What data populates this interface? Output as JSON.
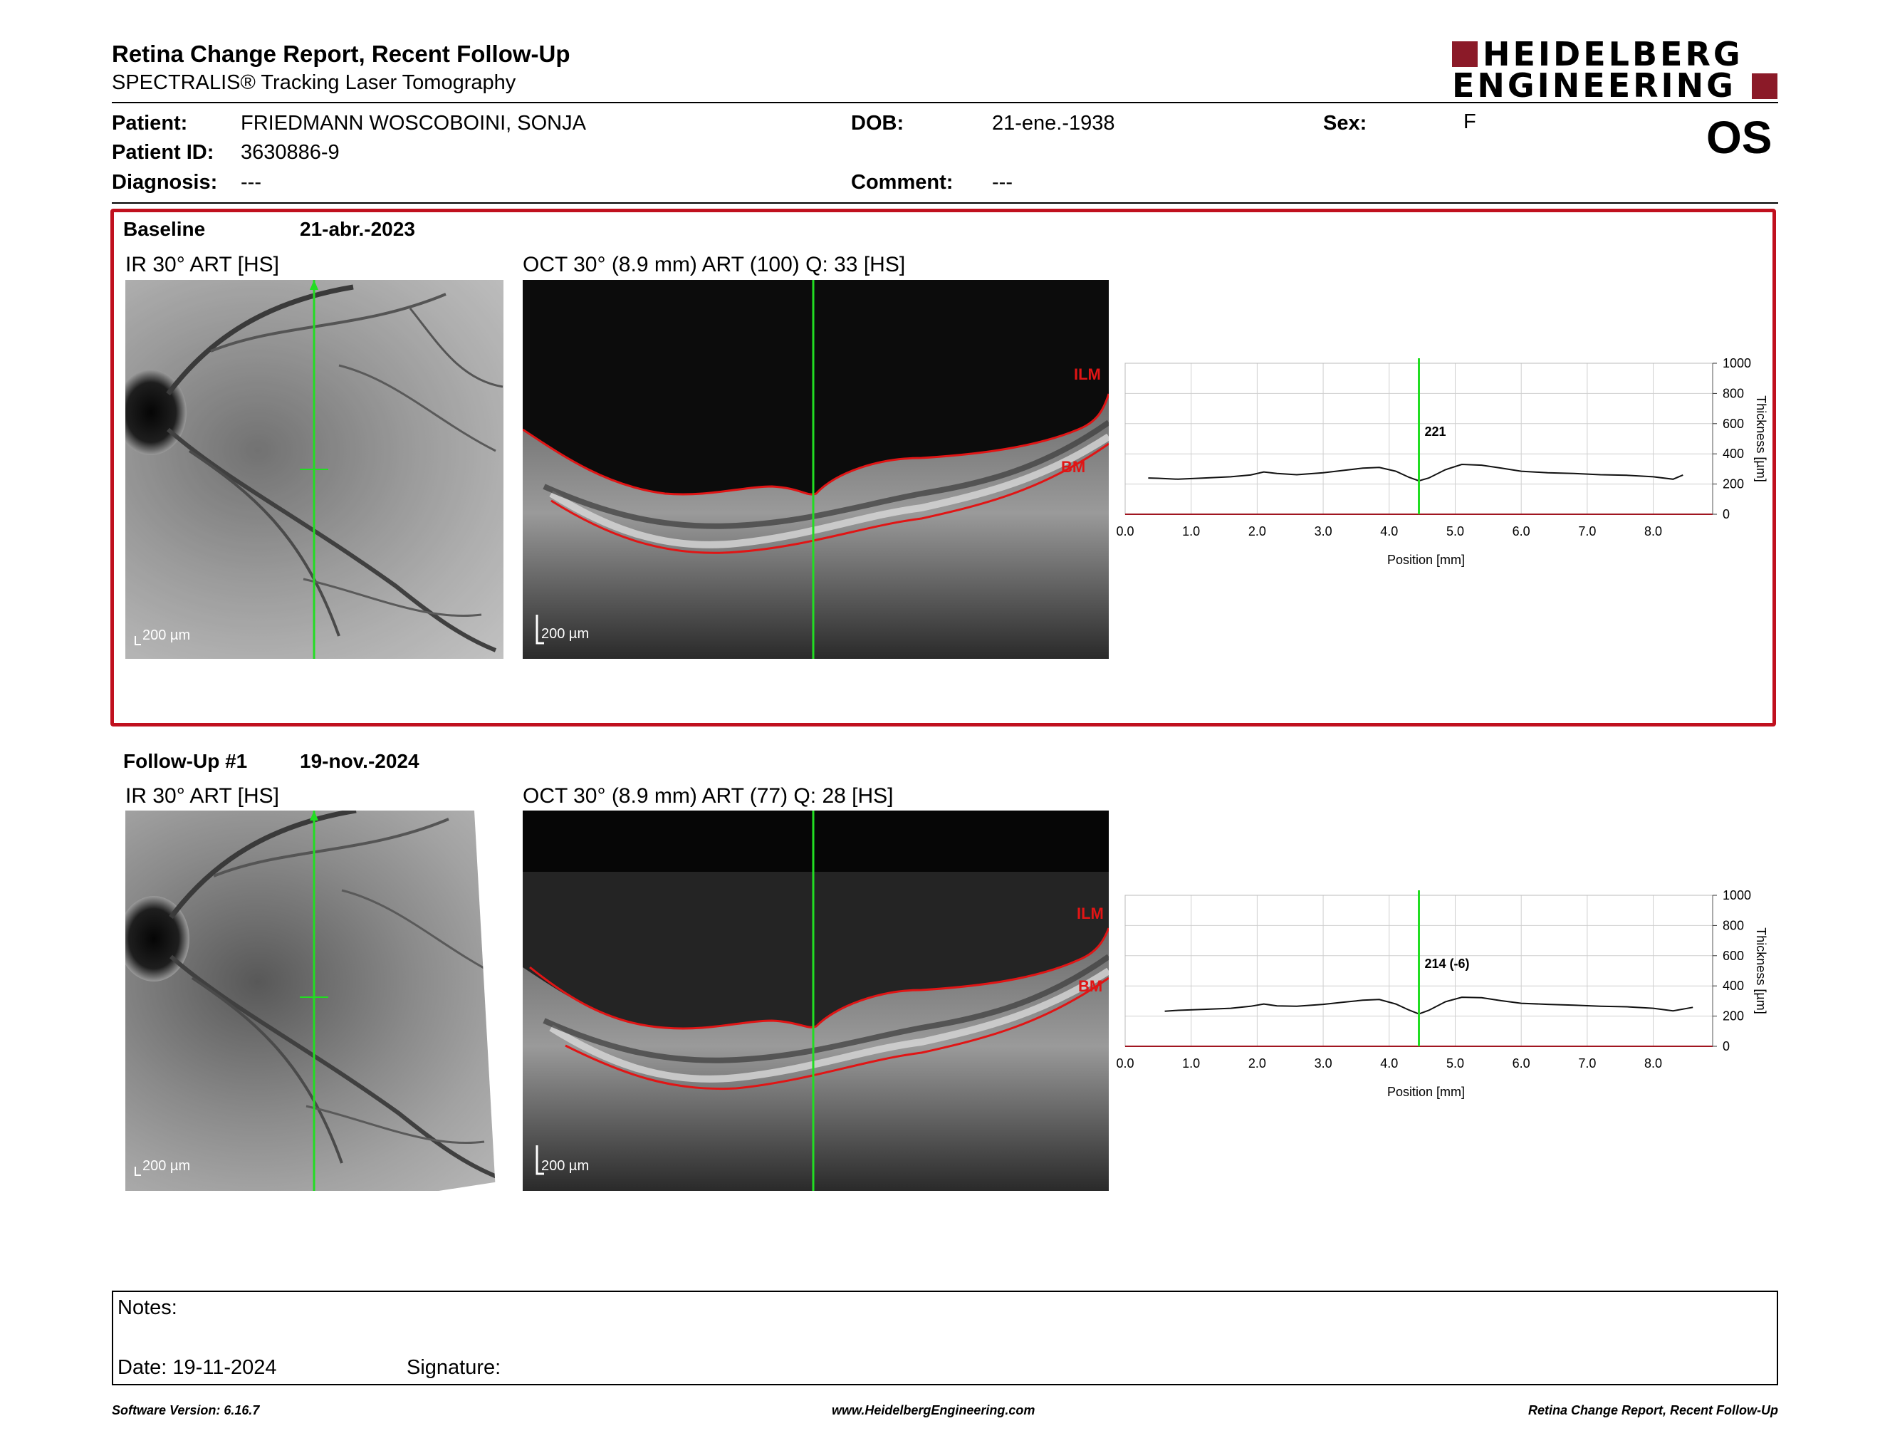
{
  "header": {
    "title": "Retina Change Report, Recent Follow-Up",
    "subtitle": "SPECTRALIS® Tracking Laser Tomography",
    "logo_line1": "HEIDELBERG",
    "logo_line2": "ENGINEERING",
    "brand_color": "#8b1a28"
  },
  "patient": {
    "patient_label": "Patient:",
    "patient_value": "FRIEDMANN WOSCOBOINI,  SONJA",
    "id_label": "Patient ID:",
    "id_value": "3630886-9",
    "diagnosis_label": "Diagnosis:",
    "diagnosis_value": "---",
    "dob_label": "DOB:",
    "dob_value": "21-ene.-1938",
    "comment_label": "Comment:",
    "comment_value": "---",
    "sex_label": "Sex:",
    "sex_value": "F",
    "eye": "OS"
  },
  "exams": [
    {
      "label": "Baseline",
      "date": "21-abr.-2023",
      "ir_title": "IR 30° ART [HS]",
      "oct_title": "OCT 30° (8.9 mm) ART (100) Q: 33 [HS]",
      "ir_scale": "200 µm",
      "oct_scale": "200 µm",
      "ilm_label": "ILM",
      "bm_label": "BM",
      "highlight_color": "#c0101e",
      "chart_data": {
        "type": "line",
        "x": [
          0.35,
          0.5,
          0.8,
          1.2,
          1.6,
          1.9,
          2.1,
          2.3,
          2.6,
          3.0,
          3.3,
          3.6,
          3.85,
          4.1,
          4.3,
          4.45,
          4.6,
          4.85,
          5.1,
          5.4,
          5.7,
          6.0,
          6.4,
          6.8,
          7.2,
          7.6,
          8.0,
          8.3,
          8.45
        ],
        "values": [
          240,
          238,
          232,
          240,
          248,
          260,
          280,
          270,
          262,
          275,
          290,
          305,
          310,
          285,
          245,
          221,
          240,
          295,
          330,
          325,
          305,
          285,
          275,
          270,
          262,
          258,
          248,
          232,
          260
        ],
        "xlabel": "Position [mm]",
        "ylabel": "Thickness [µm]",
        "xlim": [
          0.0,
          8.9
        ],
        "ylim": [
          0,
          1000
        ],
        "xticks": [
          "0.0",
          "1.0",
          "2.0",
          "3.0",
          "4.0",
          "5.0",
          "6.0",
          "7.0",
          "8.0"
        ],
        "yticks": [
          "0",
          "200",
          "400",
          "600",
          "800",
          "1000"
        ],
        "marker_position": 4.45,
        "marker_label": "221",
        "grid": true
      }
    },
    {
      "label": "Follow-Up #1",
      "date": "19-nov.-2024",
      "ir_title": "IR 30° ART [HS]",
      "oct_title": "OCT 30° (8.9 mm) ART (77) Q: 28 [HS]",
      "ir_scale": "200 µm",
      "oct_scale": "200 µm",
      "ilm_label": "ILM",
      "bm_label": "BM",
      "chart_data": {
        "type": "line",
        "x": [
          0.6,
          0.8,
          1.2,
          1.6,
          1.9,
          2.1,
          2.3,
          2.6,
          3.0,
          3.3,
          3.6,
          3.85,
          4.1,
          4.3,
          4.45,
          4.6,
          4.85,
          5.1,
          5.4,
          5.7,
          6.0,
          6.4,
          6.8,
          7.2,
          7.6,
          8.0,
          8.3,
          8.6
        ],
        "values": [
          232,
          238,
          245,
          252,
          265,
          280,
          268,
          265,
          278,
          292,
          305,
          310,
          280,
          240,
          214,
          238,
          295,
          325,
          322,
          302,
          285,
          278,
          272,
          265,
          262,
          252,
          235,
          258
        ],
        "xlabel": "Position [mm]",
        "ylabel": "Thickness [µm]",
        "xlim": [
          0.0,
          8.9
        ],
        "ylim": [
          0,
          1000
        ],
        "xticks": [
          "0.0",
          "1.0",
          "2.0",
          "3.0",
          "4.0",
          "5.0",
          "6.0",
          "7.0",
          "8.0"
        ],
        "yticks": [
          "0",
          "200",
          "400",
          "600",
          "800",
          "1000"
        ],
        "marker_position": 4.45,
        "marker_label": "214 (-6)",
        "grid": true
      }
    }
  ],
  "notes": {
    "notes_label": "Notes:",
    "date_label": "Date: 19-11-2024",
    "signature_label": "Signature:"
  },
  "footer": {
    "software": "Software Version: 6.16.7",
    "website": "www.HeidelbergEngineering.com",
    "report": "Retina Change Report, Recent Follow-Up"
  }
}
